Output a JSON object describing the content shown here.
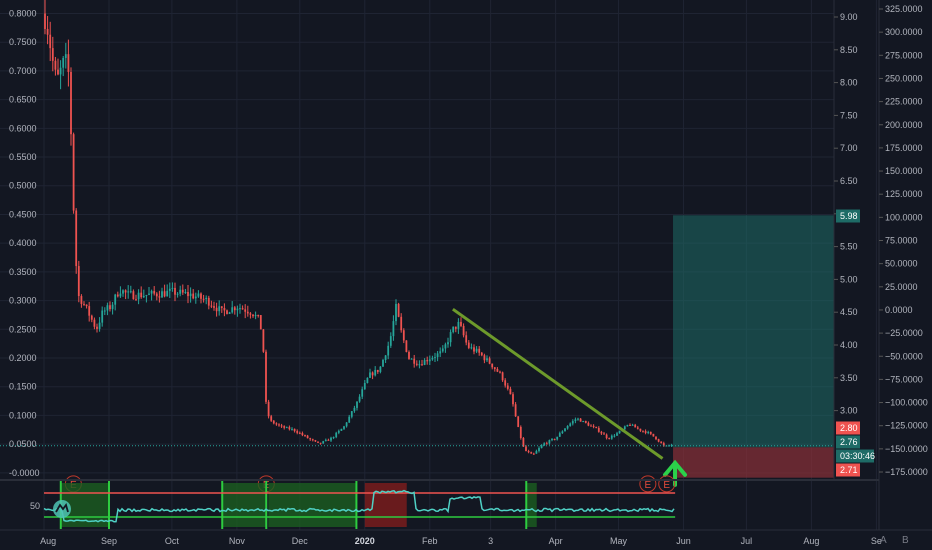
{
  "chart_data": [
    {
      "type": "candlestick",
      "x_ticks": [
        "Aug",
        "Sep",
        "Oct",
        "Nov",
        "Dec",
        "2020",
        "Feb",
        "3",
        "Apr",
        "May",
        "Jun",
        "Jul",
        "Aug",
        "Se"
      ],
      "left_axis": {
        "ticks": [
          "0.8000",
          "0.7500",
          "0.7000",
          "0.6500",
          "0.6000",
          "0.5500",
          "0.5000",
          "0.4500",
          "0.4000",
          "0.3500",
          "0.3000",
          "0.2500",
          "0.2000",
          "0.1500",
          "0.1000",
          "0.0500",
          "-0.0000"
        ],
        "ylim": [
          -0.0125,
          0.8235
        ]
      },
      "mid_axis": {
        "ticks": [
          "9.00",
          "8.50",
          "8.00",
          "7.50",
          "7.00",
          "6.50",
          "6.00",
          "5.50",
          "5.00",
          "4.50",
          "4.00",
          "3.50",
          "3.00"
        ]
      },
      "right_axis": {
        "ticks": [
          "325.0000",
          "300.0000",
          "275.0000",
          "250.0000",
          "225.0000",
          "200.0000",
          "175.0000",
          "150.0000",
          "125.0000",
          "100.0000",
          "75.0000",
          "50.0000",
          "25.0000",
          "0.0000",
          "−25.0000",
          "−50.0000",
          "−75.0000",
          "−100.0000",
          "−125.0000",
          "−150.0000",
          "−175.0000"
        ]
      },
      "price_labels": {
        "target": "5.98",
        "last": "2.80",
        "current": "2.76",
        "countdown": "03:30:46",
        "stop": "2.71"
      },
      "reference_line": 0.0472,
      "price_path": [
        [
          "2019-08-01",
          0.8
        ],
        [
          "2019-08-03",
          0.77
        ],
        [
          "2019-08-05",
          0.72
        ],
        [
          "2019-08-07",
          0.68
        ],
        [
          "2019-08-09",
          0.7
        ],
        [
          "2019-08-11",
          0.72
        ],
        [
          "2019-08-13",
          0.69
        ],
        [
          "2019-08-15",
          0.47
        ],
        [
          "2019-08-17",
          0.31
        ],
        [
          "2019-08-19",
          0.3
        ],
        [
          "2019-08-22",
          0.28
        ],
        [
          "2019-08-26",
          0.25
        ],
        [
          "2019-08-29",
          0.28
        ],
        [
          "2019-09-02",
          0.29
        ],
        [
          "2019-09-06",
          0.32
        ],
        [
          "2019-09-10",
          0.31
        ],
        [
          "2019-09-20",
          0.31
        ],
        [
          "2019-10-01",
          0.315
        ],
        [
          "2019-10-10",
          0.31
        ],
        [
          "2019-10-18",
          0.3
        ],
        [
          "2019-10-25",
          0.28
        ],
        [
          "2019-11-01",
          0.29
        ],
        [
          "2019-11-08",
          0.28
        ],
        [
          "2019-11-12",
          0.265
        ],
        [
          "2019-11-14",
          0.2
        ],
        [
          "2019-11-15",
          0.11
        ],
        [
          "2019-11-17",
          0.09
        ],
        [
          "2019-11-22",
          0.08
        ],
        [
          "2019-11-28",
          0.075
        ],
        [
          "2019-12-05",
          0.06
        ],
        [
          "2019-12-10",
          0.05
        ],
        [
          "2019-12-16",
          0.06
        ],
        [
          "2019-12-22",
          0.08
        ],
        [
          "2019-12-28",
          0.12
        ],
        [
          "2020-01-03",
          0.17
        ],
        [
          "2020-01-08",
          0.18
        ],
        [
          "2020-01-13",
          0.23
        ],
        [
          "2020-01-16",
          0.29
        ],
        [
          "2020-01-18",
          0.25
        ],
        [
          "2020-01-22",
          0.2
        ],
        [
          "2020-01-27",
          0.19
        ],
        [
          "2020-02-01",
          0.2
        ],
        [
          "2020-02-07",
          0.21
        ],
        [
          "2020-02-12",
          0.25
        ],
        [
          "2020-02-15",
          0.26
        ],
        [
          "2020-02-19",
          0.22
        ],
        [
          "2020-02-24",
          0.21
        ],
        [
          "2020-03-01",
          0.19
        ],
        [
          "2020-03-06",
          0.17
        ],
        [
          "2020-03-11",
          0.13
        ],
        [
          "2020-03-14",
          0.08
        ],
        [
          "2020-03-17",
          0.04
        ],
        [
          "2020-03-21",
          0.03
        ],
        [
          "2020-03-26",
          0.05
        ],
        [
          "2020-04-01",
          0.06
        ],
        [
          "2020-04-06",
          0.08
        ],
        [
          "2020-04-11",
          0.095
        ],
        [
          "2020-04-16",
          0.085
        ],
        [
          "2020-04-21",
          0.075
        ],
        [
          "2020-04-26",
          0.06
        ],
        [
          "2020-05-01",
          0.07
        ],
        [
          "2020-05-06",
          0.085
        ],
        [
          "2020-05-11",
          0.075
        ],
        [
          "2020-05-15",
          0.07
        ],
        [
          "2020-05-19",
          0.06
        ],
        [
          "2020-05-23",
          0.045
        ],
        [
          "2020-05-27",
          0.05
        ]
      ],
      "trend_line": [
        [
          "2020-02-12",
          0.285
        ],
        [
          "2020-05-22",
          0.025
        ]
      ],
      "position": {
        "start": "2020-05-27",
        "end": "2020-08-12",
        "entry": 0.0445,
        "target": 0.4485,
        "stop": -0.0085
      },
      "event_markers": [
        {
          "label": "E",
          "date": "2019-08-15"
        },
        {
          "label": "E",
          "date": "2019-11-15"
        },
        {
          "label": "E",
          "date": "2020-05-15"
        },
        {
          "label": "E",
          "date": "2020-05-24"
        }
      ]
    },
    {
      "type": "line",
      "y_ticks": [
        "50"
      ],
      "note": "lower oscillator pane with green/red background zones"
    }
  ],
  "ui": {
    "settings_label": "A",
    "log_label": "B",
    "colors": {
      "background": "#131722",
      "grid": "#1f2433",
      "up": "#26a69a",
      "down": "#ef5350",
      "trend": "#6d9a2b",
      "arrow": "#2bd14a",
      "oscillator": "#4fd1c5"
    }
  }
}
